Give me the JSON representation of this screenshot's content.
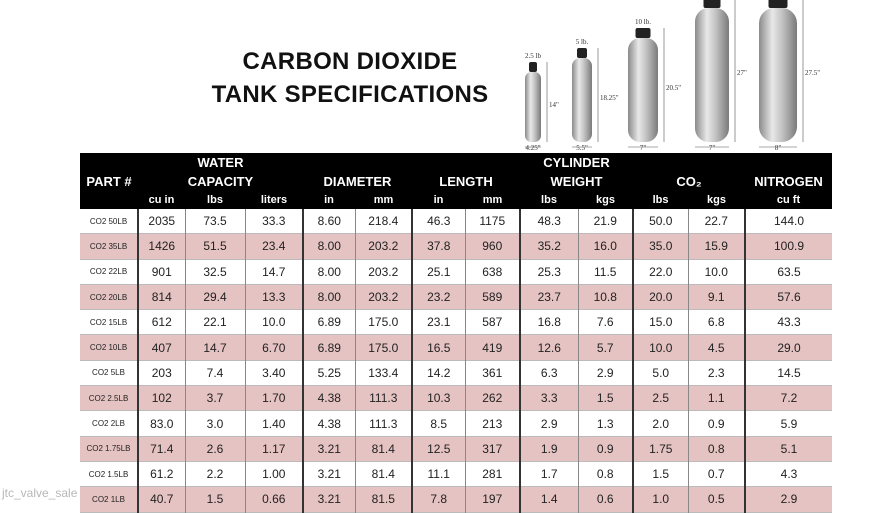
{
  "header": {
    "title_line1": "CARBON DIOXIDE",
    "title_line2": "TANK SPECIFICATIONS"
  },
  "tanks": [
    {
      "size": "2.5 lb",
      "height": "14\"",
      "width": "4.25\""
    },
    {
      "size": "5 lb.",
      "height": "18.25\"",
      "width": "5.5\""
    },
    {
      "size": "10 lb.",
      "height": "20.5\"",
      "width": "7\""
    },
    {
      "height": "27\"",
      "width": "7\""
    },
    {
      "height": "27.5\"",
      "width": "8\""
    }
  ],
  "table": {
    "group_headers": {
      "water": "WATER",
      "cylinder": "CYLINDER"
    },
    "headers": [
      "PART #",
      "CAPACITY",
      "DIAMETER",
      "LENGTH",
      "WEIGHT",
      "CO₂",
      "NITROGEN"
    ],
    "units": [
      "cu in",
      "lbs",
      "liters",
      "in",
      "mm",
      "in",
      "mm",
      "lbs",
      "kgs",
      "lbs",
      "kgs",
      "cu ft"
    ],
    "rows": [
      [
        "CO2 50LB",
        "2035",
        "73.5",
        "33.3",
        "8.60",
        "218.4",
        "46.3",
        "1175",
        "48.3",
        "21.9",
        "50.0",
        "22.7",
        "144.0"
      ],
      [
        "CO2 35LB",
        "1426",
        "51.5",
        "23.4",
        "8.00",
        "203.2",
        "37.8",
        "960",
        "35.2",
        "16.0",
        "35.0",
        "15.9",
        "100.9"
      ],
      [
        "CO2 22LB",
        "901",
        "32.5",
        "14.7",
        "8.00",
        "203.2",
        "25.1",
        "638",
        "25.3",
        "11.5",
        "22.0",
        "10.0",
        "63.5"
      ],
      [
        "CO2 20LB",
        "814",
        "29.4",
        "13.3",
        "8.00",
        "203.2",
        "23.2",
        "589",
        "23.7",
        "10.8",
        "20.0",
        "9.1",
        "57.6"
      ],
      [
        "CO2 15LB",
        "612",
        "22.1",
        "10.0",
        "6.89",
        "175.0",
        "23.1",
        "587",
        "16.8",
        "7.6",
        "15.0",
        "6.8",
        "43.3"
      ],
      [
        "CO2 10LB",
        "407",
        "14.7",
        "6.70",
        "6.89",
        "175.0",
        "16.5",
        "419",
        "12.6",
        "5.7",
        "10.0",
        "4.5",
        "29.0"
      ],
      [
        "CO2 5LB",
        "203",
        "7.4",
        "3.40",
        "5.25",
        "133.4",
        "14.2",
        "361",
        "6.3",
        "2.9",
        "5.0",
        "2.3",
        "14.5"
      ],
      [
        "CO2 2.5LB",
        "102",
        "3.7",
        "1.70",
        "4.38",
        "111.3",
        "10.3",
        "262",
        "3.3",
        "1.5",
        "2.5",
        "1.1",
        "7.2"
      ],
      [
        "CO2 2LB",
        "83.0",
        "3.0",
        "1.40",
        "4.38",
        "111.3",
        "8.5",
        "213",
        "2.9",
        "1.3",
        "2.0",
        "0.9",
        "5.9"
      ],
      [
        "CO2 1.75LB",
        "71.4",
        "2.6",
        "1.17",
        "3.21",
        "81.4",
        "12.5",
        "317",
        "1.9",
        "0.9",
        "1.75",
        "0.8",
        "5.1"
      ],
      [
        "CO2 1.5LB",
        "61.2",
        "2.2",
        "1.00",
        "3.21",
        "81.4",
        "11.1",
        "281",
        "1.7",
        "0.8",
        "1.5",
        "0.7",
        "4.3"
      ],
      [
        "CO2 1LB",
        "40.7",
        "1.5",
        "0.66",
        "3.21",
        "81.5",
        "7.8",
        "197",
        "1.4",
        "0.6",
        "1.0",
        "0.5",
        "2.9"
      ]
    ]
  },
  "watermark": "jtc_valve_sale"
}
